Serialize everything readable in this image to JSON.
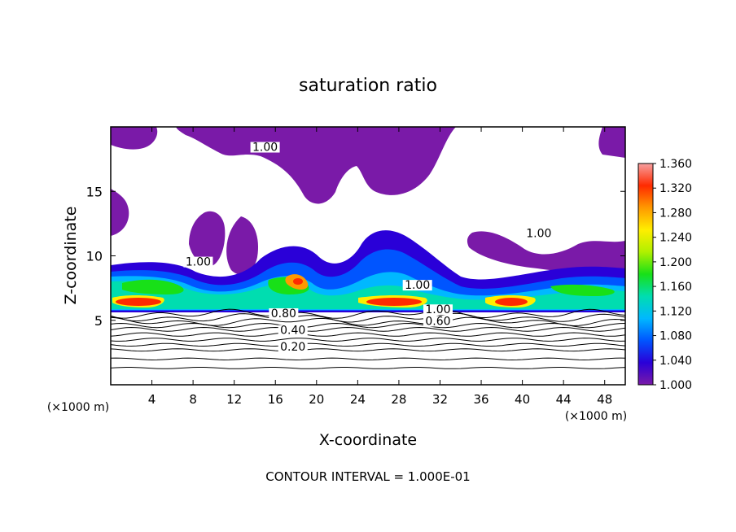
{
  "chart_data": {
    "type": "heatmap",
    "title": "saturation ratio",
    "xlabel": "X-coordinate",
    "ylabel": "Z-coordinate",
    "x_unit_left": "(×1000 m)",
    "x_unit_right": "(×1000 m)",
    "footer": "CONTOUR INTERVAL = 1.000E-01",
    "xlim": [
      0,
      50
    ],
    "ylim": [
      0,
      20
    ],
    "x_ticks": [
      "4",
      "8",
      "12",
      "16",
      "20",
      "24",
      "28",
      "32",
      "36",
      "40",
      "44",
      "48"
    ],
    "x_tick_values": [
      4,
      8,
      12,
      16,
      20,
      24,
      28,
      32,
      36,
      40,
      44,
      48
    ],
    "y_ticks": [
      "5",
      "10",
      "15"
    ],
    "y_tick_values": [
      5,
      10,
      15
    ],
    "colorbar": {
      "min": 1.0,
      "max": 1.36,
      "labels": [
        "1.360",
        "1.320",
        "1.280",
        "1.240",
        "1.200",
        "1.160",
        "1.120",
        "1.080",
        "1.040",
        "1.000"
      ],
      "label_values": [
        1.36,
        1.32,
        1.28,
        1.24,
        1.2,
        1.16,
        1.12,
        1.08,
        1.04,
        1.0
      ],
      "colors": [
        "#7a1aa8",
        "#2a00d8",
        "#0055ff",
        "#00b8ff",
        "#00ddb0",
        "#18e018",
        "#b0f000",
        "#ffee00",
        "#ff9900",
        "#ff2a00",
        "#f6a0a0"
      ]
    },
    "contour_labels": [
      {
        "text": "0.20",
        "x": 17.7,
        "z": 2.7
      },
      {
        "text": "0.40",
        "x": 17.7,
        "z": 4.0
      },
      {
        "text": "0.60",
        "x": 31.8,
        "z": 4.7
      },
      {
        "text": "0.80",
        "x": 16.8,
        "z": 5.3
      },
      {
        "text": "1.00",
        "x": 31.8,
        "z": 5.6
      },
      {
        "text": "1.00",
        "x": 29.8,
        "z": 7.5
      },
      {
        "text": "1.00",
        "x": 8.5,
        "z": 9.3
      },
      {
        "text": "1.00",
        "x": 41.6,
        "z": 11.5
      },
      {
        "text": "1.00",
        "x": 15.0,
        "z": 18.2
      }
    ]
  }
}
